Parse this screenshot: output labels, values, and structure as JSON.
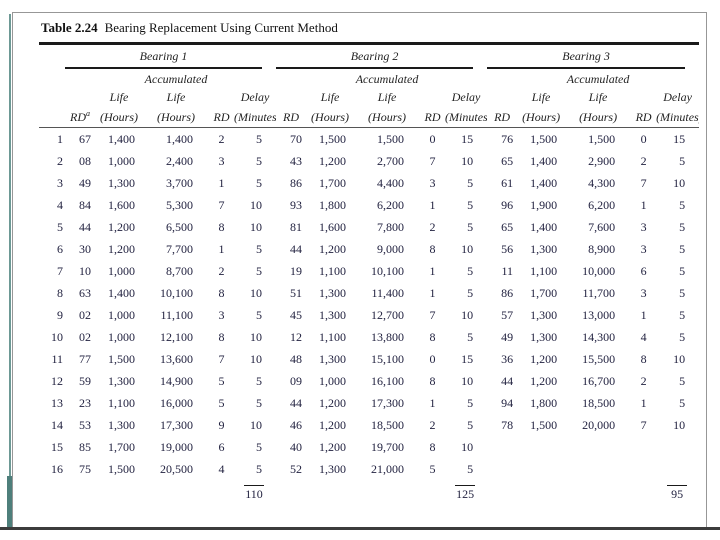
{
  "page": {
    "title_label": "Table 2.24",
    "title_text": "Bearing Replacement Using Current Method"
  },
  "table": {
    "groups": [
      {
        "label": "Bearing 1"
      },
      {
        "label": "Bearing 2"
      },
      {
        "label": "Bearing 3"
      }
    ],
    "subheaders": {
      "accumulated": "Accumulated",
      "life": "Life",
      "delay": "Delay",
      "rd": "RD",
      "rd_footnote_mark": "a",
      "hours": "(Hours)",
      "minutes": "(Minutes)"
    },
    "rows": [
      {
        "n": "1",
        "g": [
          [
            "67",
            "1,400",
            "1,400",
            "2",
            "5"
          ],
          [
            "70",
            "1,500",
            "1,500",
            "0",
            "15"
          ],
          [
            "76",
            "1,500",
            "1,500",
            "0",
            "15"
          ]
        ]
      },
      {
        "n": "2",
        "g": [
          [
            "08",
            "1,000",
            "2,400",
            "3",
            "5"
          ],
          [
            "43",
            "1,200",
            "2,700",
            "7",
            "10"
          ],
          [
            "65",
            "1,400",
            "2,900",
            "2",
            "5"
          ]
        ]
      },
      {
        "n": "3",
        "g": [
          [
            "49",
            "1,300",
            "3,700",
            "1",
            "5"
          ],
          [
            "86",
            "1,700",
            "4,400",
            "3",
            "5"
          ],
          [
            "61",
            "1,400",
            "4,300",
            "7",
            "10"
          ]
        ]
      },
      {
        "n": "4",
        "g": [
          [
            "84",
            "1,600",
            "5,300",
            "7",
            "10"
          ],
          [
            "93",
            "1,800",
            "6,200",
            "1",
            "5"
          ],
          [
            "96",
            "1,900",
            "6,200",
            "1",
            "5"
          ]
        ]
      },
      {
        "n": "5",
        "g": [
          [
            "44",
            "1,200",
            "6,500",
            "8",
            "10"
          ],
          [
            "81",
            "1,600",
            "7,800",
            "2",
            "5"
          ],
          [
            "65",
            "1,400",
            "7,600",
            "3",
            "5"
          ]
        ]
      },
      {
        "n": "6",
        "g": [
          [
            "30",
            "1,200",
            "7,700",
            "1",
            "5"
          ],
          [
            "44",
            "1,200",
            "9,000",
            "8",
            "10"
          ],
          [
            "56",
            "1,300",
            "8,900",
            "3",
            "5"
          ]
        ]
      },
      {
        "n": "7",
        "g": [
          [
            "10",
            "1,000",
            "8,700",
            "2",
            "5"
          ],
          [
            "19",
            "1,100",
            "10,100",
            "1",
            "5"
          ],
          [
            "11",
            "1,100",
            "10,000",
            "6",
            "5"
          ]
        ]
      },
      {
        "n": "8",
        "g": [
          [
            "63",
            "1,400",
            "10,100",
            "8",
            "10"
          ],
          [
            "51",
            "1,300",
            "11,400",
            "1",
            "5"
          ],
          [
            "86",
            "1,700",
            "11,700",
            "3",
            "5"
          ]
        ]
      },
      {
        "n": "9",
        "g": [
          [
            "02",
            "1,000",
            "11,100",
            "3",
            "5"
          ],
          [
            "45",
            "1,300",
            "12,700",
            "7",
            "10"
          ],
          [
            "57",
            "1,300",
            "13,000",
            "1",
            "5"
          ]
        ]
      },
      {
        "n": "10",
        "g": [
          [
            "02",
            "1,000",
            "12,100",
            "8",
            "10"
          ],
          [
            "12",
            "1,100",
            "13,800",
            "8",
            "5"
          ],
          [
            "49",
            "1,300",
            "14,300",
            "4",
            "5"
          ]
        ]
      },
      {
        "n": "11",
        "g": [
          [
            "77",
            "1,500",
            "13,600",
            "7",
            "10"
          ],
          [
            "48",
            "1,300",
            "15,100",
            "0",
            "15"
          ],
          [
            "36",
            "1,200",
            "15,500",
            "8",
            "10"
          ]
        ]
      },
      {
        "n": "12",
        "g": [
          [
            "59",
            "1,300",
            "14,900",
            "5",
            "5"
          ],
          [
            "09",
            "1,000",
            "16,100",
            "8",
            "10"
          ],
          [
            "44",
            "1,200",
            "16,700",
            "2",
            "5"
          ]
        ]
      },
      {
        "n": "13",
        "g": [
          [
            "23",
            "1,100",
            "16,000",
            "5",
            "5"
          ],
          [
            "44",
            "1,200",
            "17,300",
            "1",
            "5"
          ],
          [
            "94",
            "1,800",
            "18,500",
            "1",
            "5"
          ]
        ]
      },
      {
        "n": "14",
        "g": [
          [
            "53",
            "1,300",
            "17,300",
            "9",
            "10"
          ],
          [
            "46",
            "1,200",
            "18,500",
            "2",
            "5"
          ],
          [
            "78",
            "1,500",
            "20,000",
            "7",
            "10"
          ]
        ]
      },
      {
        "n": "15",
        "g": [
          [
            "85",
            "1,700",
            "19,000",
            "6",
            "5"
          ],
          [
            "40",
            "1,200",
            "19,700",
            "8",
            "10"
          ],
          [
            "",
            "",
            "",
            "",
            ""
          ]
        ]
      },
      {
        "n": "16",
        "g": [
          [
            "75",
            "1,500",
            "20,500",
            "4",
            "5"
          ],
          [
            "52",
            "1,300",
            "21,000",
            "5",
            "5"
          ],
          [
            "",
            "",
            "",
            "",
            ""
          ]
        ]
      }
    ],
    "totals": [
      "110",
      "125",
      "95"
    ]
  }
}
